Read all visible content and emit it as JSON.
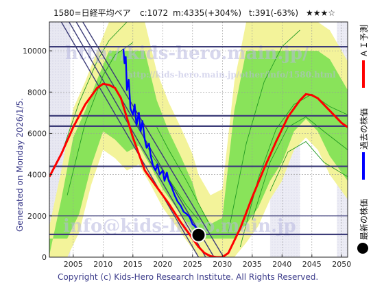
{
  "header": {
    "code_name": "1580=日経平均ベア",
    "c": "c:1072",
    "m": "m:4335(+304%)",
    "t": "t:391(-63%)",
    "stars": "★★★☆"
  },
  "side_label": "Generated on Monday 2026/1/5.",
  "footer": "Copyright (c) Kids-Hero Research Institute. All Rights Reserved.",
  "watermarks": {
    "url_large": "http://kids-hero.main.jp/",
    "url_small": "http://kids-hero.main.jp/other/info/1580.html",
    "email": "info@kids-hero.main.jp"
  },
  "legend": [
    {
      "label": "ＡＩ予測",
      "color": "#ff0000",
      "marker": "line"
    },
    {
      "label": "過去の株価",
      "color": "#0000ff",
      "marker": "line"
    },
    {
      "label": "最新の株価",
      "color": "#000000",
      "marker": "dot"
    }
  ],
  "colors": {
    "ai": "#ff0000",
    "past": "#0000ff",
    "latest": "#000000",
    "hline": "#3c3c78",
    "trend": "#3c3c78",
    "band_green": "#66dd44",
    "band_yellow": "#f3f39a",
    "band_lavender": "#e6e6f2",
    "green_line": "#229922"
  },
  "chart_data": {
    "type": "line",
    "xlim": [
      2001,
      2051
    ],
    "ylim": [
      0,
      11400
    ],
    "xticks": [
      2005,
      2010,
      2015,
      2020,
      2025,
      2030,
      2035,
      2040,
      2045,
      2050
    ],
    "yticks": [
      0,
      2000,
      4000,
      6000,
      8000,
      10000
    ],
    "grid": true,
    "latest": {
      "x": 2026.0,
      "y": 1072
    },
    "hlines": [
      10200,
      6850,
      6350,
      4400,
      1100
    ],
    "hlines_thin": [
      2000
    ],
    "trendlines": [
      {
        "x": [
          2003.0,
          2026.0
        ],
        "y": [
          11400,
          0
        ]
      },
      {
        "x": [
          2004.3,
          2027.2
        ],
        "y": [
          11400,
          0
        ]
      },
      {
        "x": [
          2005.5,
          2028.6
        ],
        "y": [
          11400,
          0
        ]
      },
      {
        "x": [
          2006.6,
          2030.2
        ],
        "y": [
          11400,
          0
        ]
      }
    ],
    "series": [
      {
        "name": "ＡＩ予測",
        "x": [
          2001,
          2003,
          2005,
          2007,
          2009,
          2010,
          2011,
          2012,
          2013,
          2015,
          2017,
          2019,
          2021,
          2023,
          2025,
          2026,
          2027,
          2028,
          2029,
          2030,
          2031,
          2033,
          2035,
          2037,
          2039,
          2041,
          2043,
          2044,
          2045,
          2046,
          2048,
          2050,
          2051
        ],
        "values": [
          3900,
          5000,
          6300,
          7400,
          8200,
          8400,
          8350,
          8200,
          7700,
          5800,
          4200,
          3400,
          2600,
          1700,
          900,
          500,
          200,
          50,
          0,
          0,
          200,
          1400,
          2900,
          4300,
          5600,
          6800,
          7600,
          7900,
          7850,
          7700,
          7100,
          6500,
          6300
        ]
      },
      {
        "name": "過去の株価",
        "x": [
          2013.4,
          2013.6,
          2013.8,
          2014.0,
          2014.3,
          2014.6,
          2015.0,
          2015.3,
          2015.6,
          2016.0,
          2016.3,
          2016.6,
          2017.0,
          2017.3,
          2017.7,
          2018.0,
          2018.4,
          2018.8,
          2019.1,
          2019.5,
          2020.0,
          2020.3,
          2020.7,
          2021.0,
          2021.5,
          2022.0,
          2022.5,
          2023.0,
          2023.5,
          2024.0,
          2024.5,
          2025.0,
          2025.4,
          2025.8,
          2026.0
        ],
        "values": [
          10100,
          9400,
          9700,
          8100,
          8600,
          7200,
          6900,
          7400,
          6400,
          7000,
          6100,
          6600,
          5700,
          5300,
          5500,
          4900,
          4400,
          4200,
          4500,
          4000,
          4200,
          3700,
          4100,
          3700,
          3400,
          3000,
          2700,
          2500,
          2200,
          2100,
          1950,
          1600,
          1500,
          1300,
          1072
        ]
      }
    ]
  }
}
